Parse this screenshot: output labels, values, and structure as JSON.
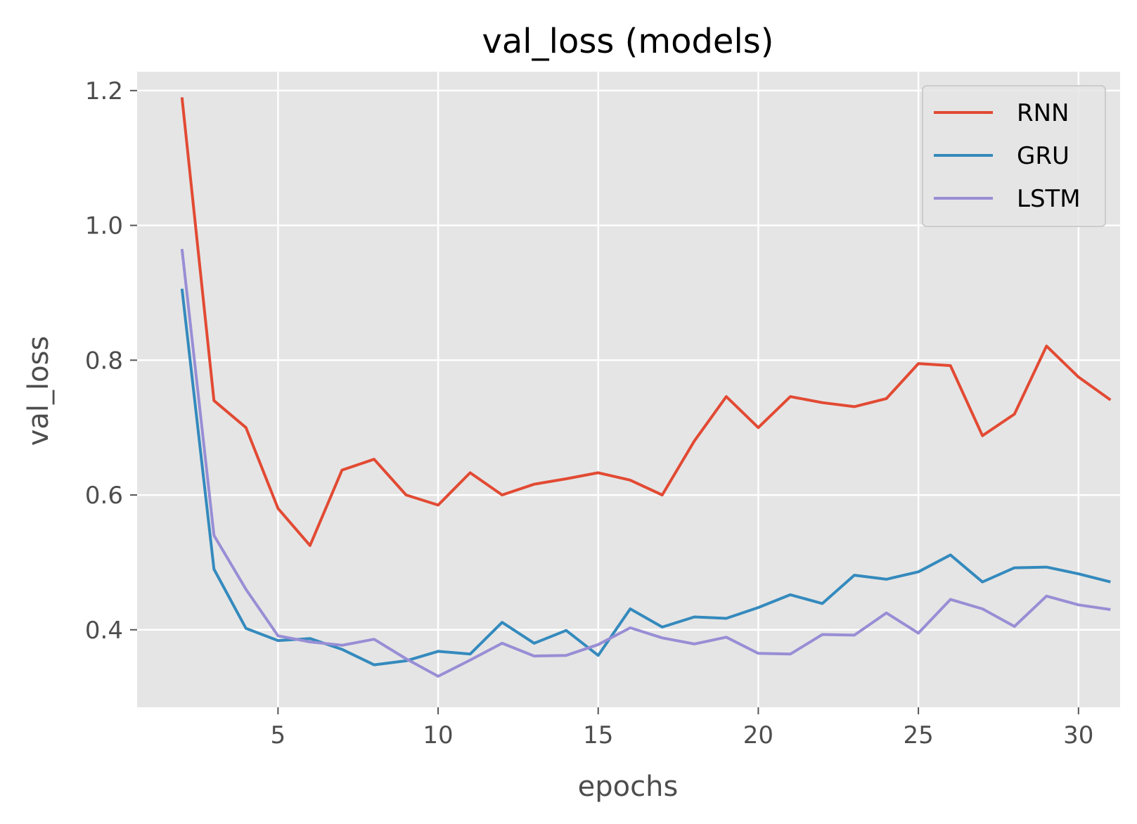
{
  "chart_data": {
    "type": "line",
    "title": "val_loss (models)",
    "xlabel": "epochs",
    "ylabel": "val_loss",
    "xlim": [
      0.6,
      31.3
    ],
    "ylim": [
      0.285,
      1.228
    ],
    "xticks": [
      5,
      10,
      15,
      20,
      25,
      30
    ],
    "yticks": [
      0.4,
      0.6,
      0.8,
      1.0,
      1.2
    ],
    "xtick_labels": [
      "5",
      "10",
      "15",
      "20",
      "25",
      "30"
    ],
    "ytick_labels": [
      "0.4",
      "0.6",
      "0.8",
      "1.0",
      "1.2"
    ],
    "grid": true,
    "legend_position": "top-right",
    "x": [
      2,
      3,
      4,
      5,
      6,
      7,
      8,
      9,
      10,
      11,
      12,
      13,
      14,
      15,
      16,
      17,
      18,
      19,
      20,
      21,
      22,
      23,
      24,
      25,
      26,
      27,
      28,
      29,
      30,
      31
    ],
    "series": [
      {
        "name": "RNN",
        "color": "#e24a33",
        "values": [
          1.19,
          0.74,
          0.7,
          0.58,
          0.525,
          0.637,
          0.653,
          0.6,
          0.585,
          0.633,
          0.6,
          0.616,
          0.624,
          0.633,
          0.622,
          0.6,
          0.68,
          0.746,
          0.7,
          0.746,
          0.737,
          0.731,
          0.743,
          0.795,
          0.792,
          0.688,
          0.72,
          0.821,
          0.775,
          0.741
        ]
      },
      {
        "name": "GRU",
        "color": "#348abd",
        "values": [
          0.906,
          0.49,
          0.402,
          0.384,
          0.387,
          0.371,
          0.348,
          0.354,
          0.368,
          0.364,
          0.411,
          0.38,
          0.399,
          0.362,
          0.431,
          0.404,
          0.419,
          0.417,
          0.433,
          0.452,
          0.439,
          0.481,
          0.475,
          0.486,
          0.511,
          0.471,
          0.492,
          0.493,
          0.483,
          0.471
        ]
      },
      {
        "name": "LSTM",
        "color": "#988ed5",
        "values": [
          0.965,
          0.54,
          0.46,
          0.391,
          0.382,
          0.377,
          0.386,
          0.357,
          0.331,
          0.355,
          0.38,
          0.361,
          0.362,
          0.378,
          0.403,
          0.388,
          0.379,
          0.389,
          0.365,
          0.364,
          0.393,
          0.392,
          0.425,
          0.395,
          0.445,
          0.431,
          0.405,
          0.45,
          0.437,
          0.43
        ]
      }
    ]
  }
}
